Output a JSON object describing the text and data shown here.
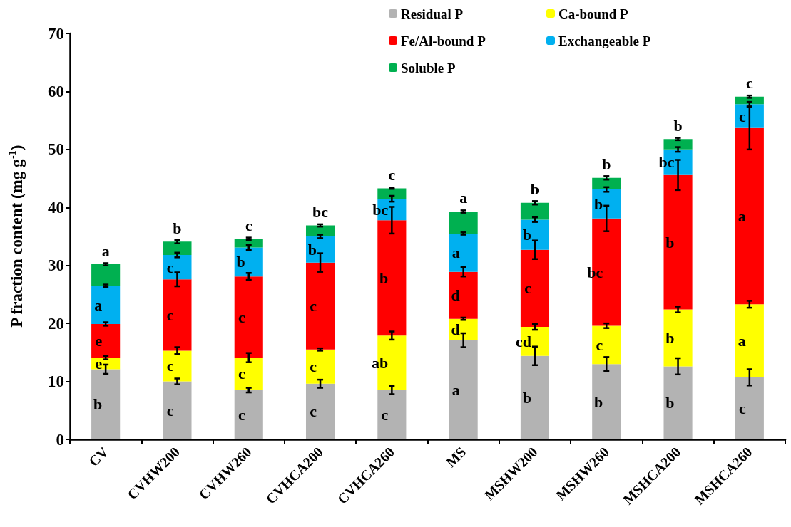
{
  "chart_data": {
    "type": "bar",
    "stacked": true,
    "ylabel": "P fraction content (mg g$^{-1}$)",
    "categories": [
      "CV",
      "CVHW200",
      "CVHW260",
      "CVHCA200",
      "CVHCA260",
      "MS",
      "MSHW200",
      "MSHW260",
      "MSHCA200",
      "MSHCA260"
    ],
    "series": [
      {
        "name": "Residual P",
        "color": "#b3b3b3",
        "values": [
          12.1,
          10.0,
          8.5,
          9.6,
          8.5,
          17.1,
          14.4,
          13.0,
          12.6,
          10.7
        ],
        "errors": [
          0.8,
          0.5,
          0.4,
          0.7,
          0.7,
          1.2,
          1.6,
          1.2,
          1.4,
          1.4
        ],
        "value_labels": [
          "b",
          "c",
          "c",
          "c",
          "c",
          "a",
          "b",
          "b",
          "b",
          "c"
        ]
      },
      {
        "name": "Ca-bound P",
        "color": "#ffff00",
        "values": [
          2.0,
          5.3,
          5.6,
          5.9,
          9.4,
          3.7,
          5.0,
          6.6,
          9.8,
          12.6
        ],
        "errors": [
          0.3,
          0.6,
          0.8,
          0.2,
          0.7,
          0.2,
          0.5,
          0.4,
          0.5,
          0.6
        ],
        "value_labels": [
          "e",
          "c",
          "c",
          "c",
          "ab",
          "d",
          "cd",
          "c",
          "b",
          "a"
        ]
      },
      {
        "name": "Fe/Al-bound P",
        "color": "#ff0000",
        "values": [
          5.8,
          12.3,
          14.0,
          15.0,
          19.9,
          8.1,
          13.3,
          18.5,
          23.2,
          30.4
        ],
        "errors": [
          0.3,
          1.2,
          0.6,
          1.6,
          2.3,
          0.8,
          1.6,
          2.2,
          2.6,
          3.7
        ],
        "value_labels": [
          "e",
          "c",
          "c",
          "c",
          "b",
          "d",
          "c",
          "bc",
          "b",
          "a"
        ]
      },
      {
        "name": "Exchangeable P",
        "color": "#00b0f0",
        "values": [
          6.6,
          4.2,
          5.0,
          4.5,
          3.7,
          6.6,
          5.2,
          5.0,
          4.4,
          4.1
        ],
        "errors": [
          0.2,
          0.4,
          0.4,
          0.3,
          0.5,
          0.2,
          0.4,
          0.4,
          0.4,
          0.4
        ],
        "value_labels": [
          "a",
          "c",
          "b",
          "b",
          "bc",
          "a",
          "b",
          "b",
          "bc",
          "c"
        ]
      },
      {
        "name": "Soluble P",
        "color": "#00b050",
        "values": [
          3.7,
          2.3,
          1.5,
          1.9,
          1.8,
          3.8,
          2.9,
          2.0,
          1.8,
          1.3
        ],
        "errors": [
          0.2,
          0.3,
          0.2,
          0.2,
          0.1,
          0.2,
          0.3,
          0.3,
          0.2,
          0.2
        ],
        "value_labels": [
          "a",
          "b",
          "c",
          "bc",
          "c",
          "a",
          "b",
          "b",
          "b",
          "c"
        ]
      }
    ],
    "ylim": [
      0,
      70
    ],
    "yticks": [
      0,
      10,
      20,
      30,
      40,
      50,
      60,
      70
    ],
    "grid": false,
    "legend": "top right"
  }
}
